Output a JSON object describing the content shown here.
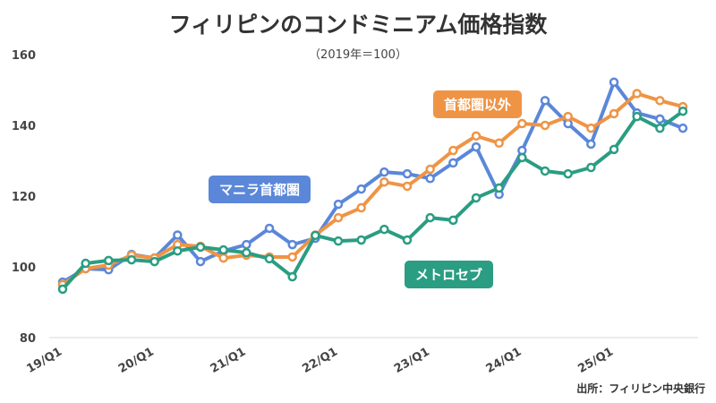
{
  "chart_data": {
    "type": "line",
    "title": "フィリピンのコンドミニアム価格指数",
    "subtitle": "（2019年＝100）",
    "source": "出所：フィリピン中央銀行",
    "ylim": [
      80,
      160
    ],
    "yticks": [
      80,
      100,
      120,
      140,
      160
    ],
    "grid": false,
    "x": [
      "19/Q1",
      "19/Q2",
      "19/Q3",
      "19/Q4",
      "20/Q1",
      "20/Q2",
      "20/Q3",
      "20/Q4",
      "21/Q1",
      "21/Q2",
      "21/Q3",
      "21/Q4",
      "22/Q1",
      "22/Q2",
      "22/Q3",
      "22/Q4",
      "23/Q1",
      "23/Q2",
      "23/Q3",
      "23/Q4",
      "24/Q1",
      "24/Q2",
      "24/Q3",
      "24/Q4",
      "25/Q1",
      "25/Q2",
      "25/Q3",
      "25/Q4"
    ],
    "xtick_labels": [
      "19/Q1",
      "20/Q1",
      "21/Q1",
      "22/Q1",
      "23/Q1",
      "24/Q1",
      "25/Q1"
    ],
    "series": [
      {
        "name": "マニラ首都圏",
        "color": "#5b87d9",
        "values": [
          95.7,
          99.5,
          99.2,
          103.5,
          102.5,
          109,
          101.5,
          104.5,
          106.3,
          110.9,
          106.3,
          108.1,
          117.7,
          122,
          126.8,
          126.3,
          125,
          129.4,
          133.9,
          120.5,
          132.9,
          147,
          140.5,
          134.7,
          152.2,
          143.5,
          141.8,
          139.2
        ]
      },
      {
        "name": "首都圏以外",
        "color": "#ef9445",
        "values": [
          95,
          99.5,
          100.5,
          103.3,
          102.5,
          106.3,
          105.8,
          102.5,
          103.3,
          102.8,
          102.8,
          109,
          113.9,
          116.7,
          124,
          122.8,
          127.6,
          132.9,
          137,
          135,
          140.5,
          140,
          142.5,
          139.2,
          143.3,
          149,
          147,
          145.3
        ]
      },
      {
        "name": "メトロセブ",
        "color": "#2a9d82",
        "values": [
          93.7,
          101,
          101.8,
          102,
          101.5,
          104.5,
          105.6,
          104.8,
          104,
          102.3,
          97.2,
          108.9,
          107.3,
          107.6,
          110.6,
          107.6,
          113.9,
          113.2,
          119.5,
          122.3,
          130.9,
          127.1,
          126.3,
          128.1,
          133.2,
          142.5,
          139.2,
          144
        ]
      }
    ]
  }
}
